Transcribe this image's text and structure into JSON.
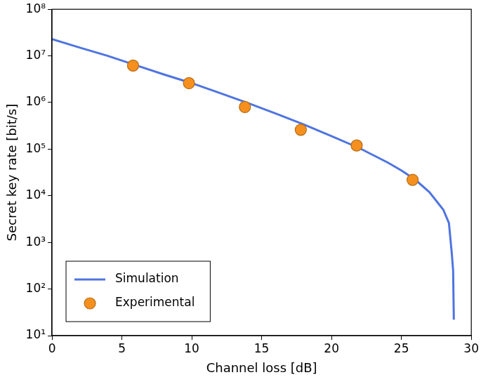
{
  "chart_data": {
    "type": "line",
    "x_label": "Channel loss [dB]",
    "y_label": "Secret key rate [bit/s]",
    "xlim": [
      0,
      30
    ],
    "xticks": [
      0,
      5,
      10,
      15,
      20,
      25,
      30
    ],
    "ylim": [
      10,
      100000000
    ],
    "yticks": [
      {
        "value": 10,
        "label": "10¹"
      },
      {
        "value": 100,
        "label": "10²"
      },
      {
        "value": 1000,
        "label": "10³"
      },
      {
        "value": 10000,
        "label": "10⁴"
      },
      {
        "value": 100000,
        "label": "10⁵"
      },
      {
        "value": 1000000,
        "label": "10⁶"
      },
      {
        "value": 10000000,
        "label": "10⁷"
      },
      {
        "value": 100000000,
        "label": "10⁸"
      }
    ],
    "log": "y",
    "grid": false,
    "legend": "lower left",
    "series": [
      {
        "name": "Simulation",
        "type": "line",
        "color": "#4f74e0",
        "line_style": "solid",
        "x": [
          0,
          2,
          4,
          6,
          8,
          10,
          12,
          14,
          16,
          18,
          20,
          22,
          24,
          25,
          26,
          27,
          28,
          28.4,
          28.6,
          28.7,
          28.75
        ],
        "values": [
          23000000,
          15000000,
          10000000,
          6300000,
          4000000,
          2600000,
          1600000,
          980000,
          580000,
          340000,
          190000,
          105000,
          52000,
          35000,
          22000,
          12000,
          5000,
          2600,
          600,
          250,
          22
        ]
      },
      {
        "name": "Experimental",
        "type": "scatter",
        "color": "#f5901e",
        "marker": "circle",
        "x": [
          5.8,
          9.8,
          13.8,
          17.8,
          21.8,
          25.8
        ],
        "values": [
          6200000,
          2600000,
          800000,
          260000,
          120000,
          22000
        ]
      }
    ]
  }
}
